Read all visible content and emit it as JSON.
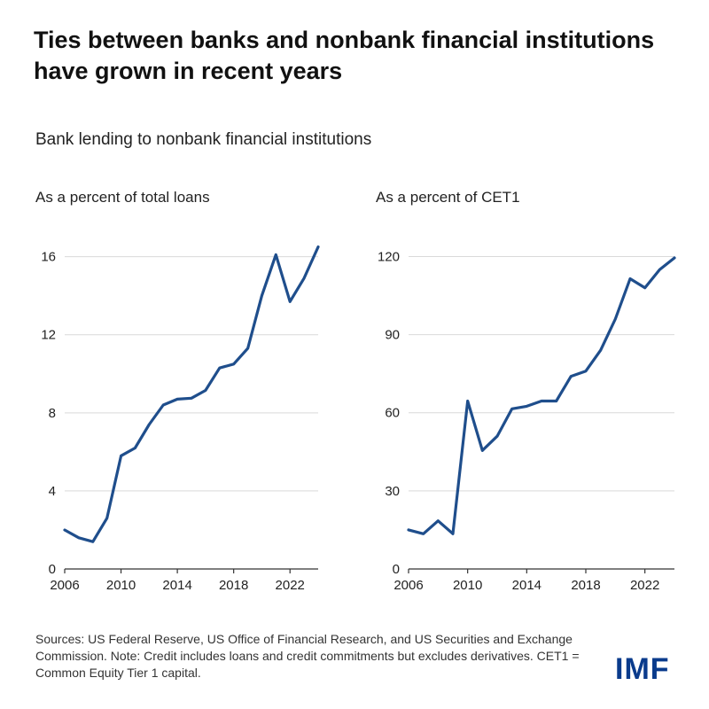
{
  "title": "Ties between banks and nonbank financial institutions have grown in recent years",
  "subtitle": "Bank lending to nonbank financial institutions",
  "footnote": "Sources: US Federal Reserve, US Office of Financial Research, and US Securities and Exchange Commission. Note: Credit includes loans and credit commitments but excludes derivatives. CET1 = Common Equity Tier 1 capital.",
  "logo": "IMF",
  "colors": {
    "line": "#1f4e8c",
    "grid": "#d9d9d9",
    "axis": "#333333"
  },
  "chart_data": [
    {
      "type": "line",
      "title": "As a percent of total loans",
      "x": [
        2006,
        2007,
        2008,
        2009,
        2010,
        2011,
        2012,
        2013,
        2014,
        2015,
        2016,
        2017,
        2018,
        2019,
        2020,
        2021,
        2022,
        2023,
        2024
      ],
      "series": [
        {
          "values": [
            2.0,
            1.6,
            1.4,
            2.6,
            5.8,
            6.2,
            7.4,
            8.4,
            8.7,
            8.75,
            9.15,
            10.3,
            10.5,
            11.3,
            14.0,
            16.1,
            13.7,
            14.9,
            16.5
          ]
        }
      ],
      "xticks": [
        2006,
        2010,
        2014,
        2018,
        2022
      ],
      "yticks": [
        0,
        4,
        8,
        12,
        16
      ],
      "xlim": [
        2006,
        2024
      ],
      "ylim": [
        0,
        17.3
      ],
      "grid": "horizontal"
    },
    {
      "type": "line",
      "title": "As a percent of CET1",
      "x": [
        2006,
        2007,
        2008,
        2009,
        2010,
        2011,
        2012,
        2013,
        2014,
        2015,
        2016,
        2017,
        2018,
        2019,
        2020,
        2021,
        2022,
        2023,
        2024
      ],
      "series": [
        {
          "values": [
            15,
            13.5,
            18.5,
            13.5,
            64.5,
            45.5,
            51,
            61.5,
            62.5,
            64.5,
            64.5,
            74,
            76,
            84,
            96,
            111.5,
            108,
            115,
            119.5
          ]
        }
      ],
      "xticks": [
        2006,
        2010,
        2014,
        2018,
        2022
      ],
      "yticks": [
        0,
        30,
        60,
        90,
        120
      ],
      "xlim": [
        2006,
        2024
      ],
      "ylim": [
        0,
        129.7
      ],
      "grid": "horizontal"
    }
  ]
}
